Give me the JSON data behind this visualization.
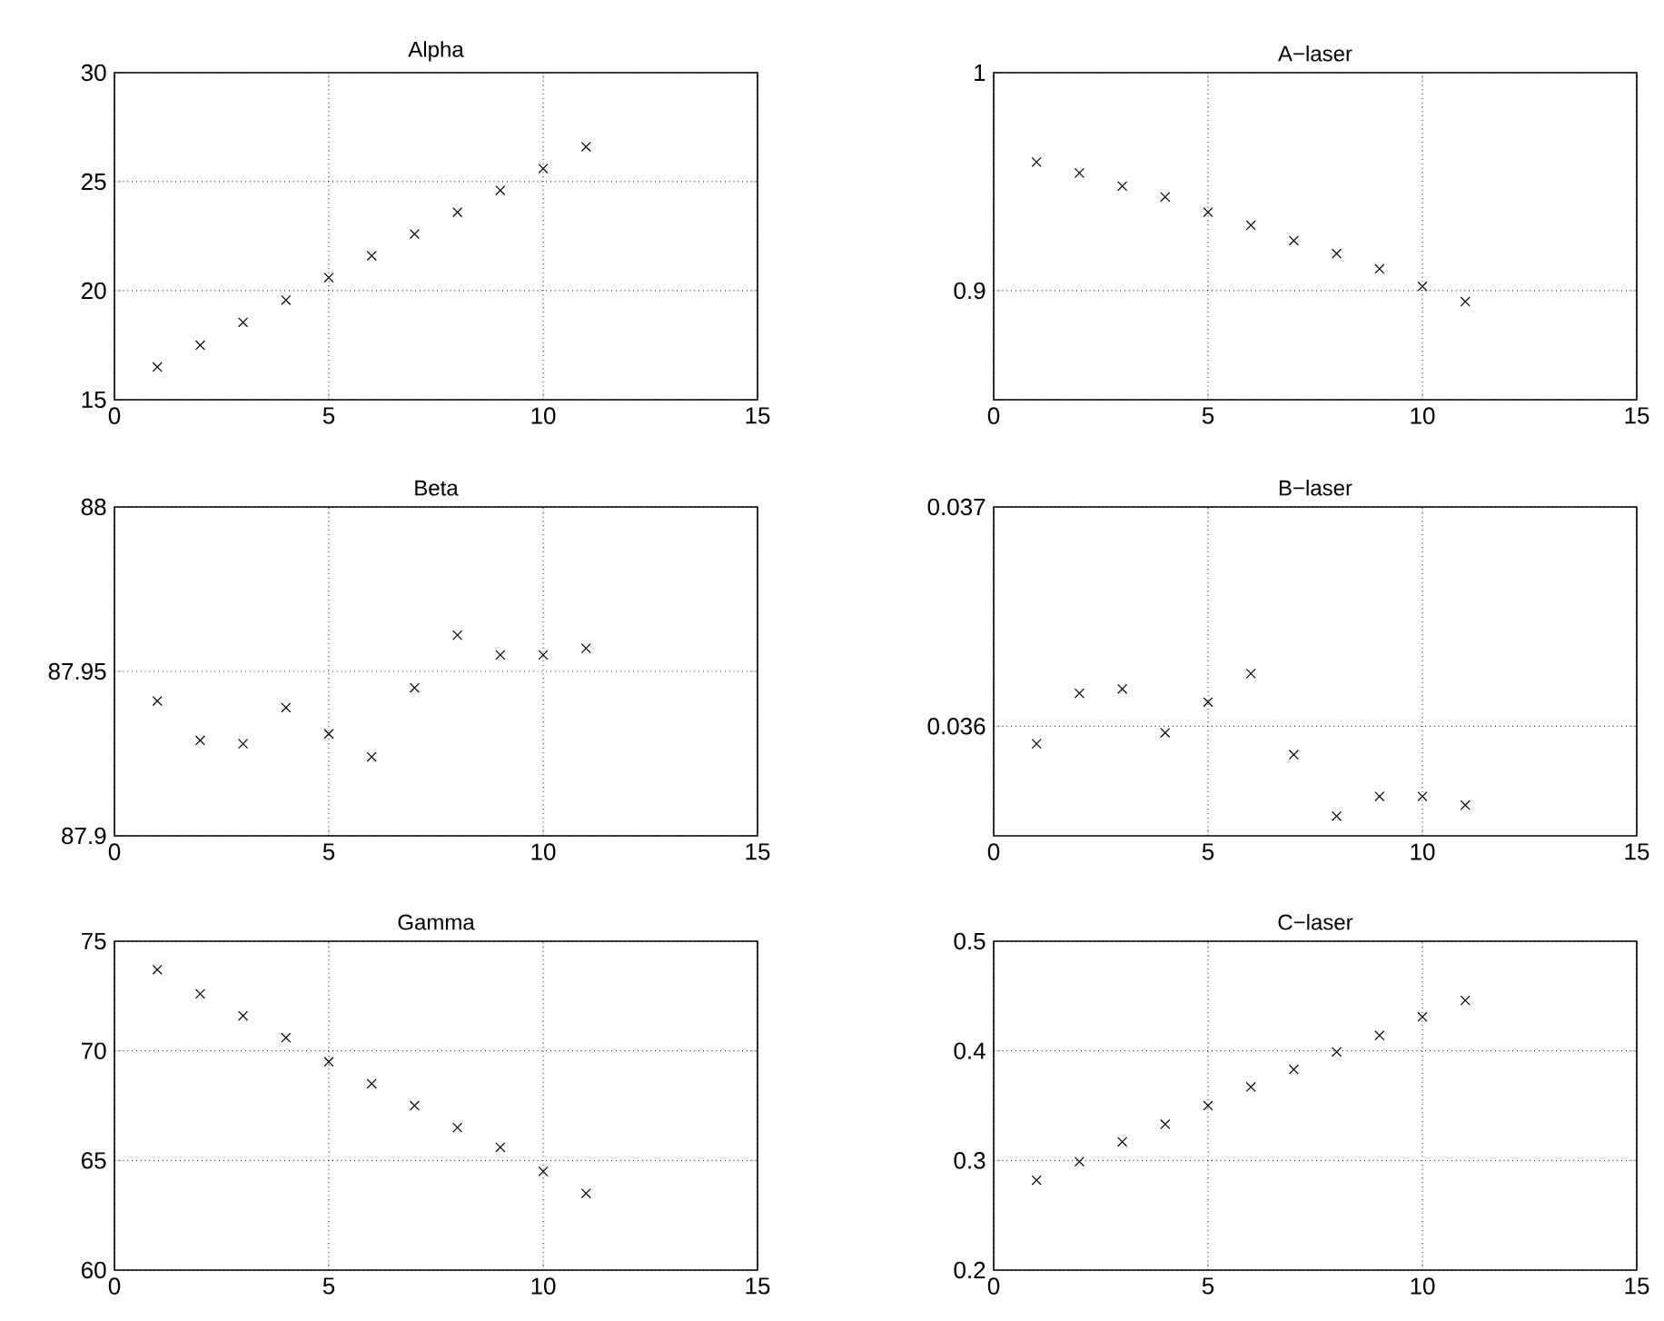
{
  "chart_data": [
    {
      "type": "scatter",
      "title": "Alpha",
      "x": [
        1,
        2,
        3,
        4,
        5,
        6,
        7,
        8,
        9,
        10,
        11
      ],
      "values": [
        16.5,
        17.5,
        18.55,
        19.57,
        20.6,
        21.6,
        22.6,
        23.6,
        24.6,
        25.6,
        26.6
      ],
      "color": "#000000",
      "marker": "cross",
      "grid": true,
      "xlim": [
        0,
        15
      ],
      "xticks": [
        0,
        5,
        10,
        15
      ],
      "ylim": [
        15,
        30
      ],
      "yticks": [
        15,
        20,
        25,
        30
      ]
    },
    {
      "type": "scatter",
      "title": "A−laser",
      "x": [
        1,
        2,
        3,
        4,
        5,
        6,
        7,
        8,
        9,
        10,
        11
      ],
      "values": [
        0.959,
        0.954,
        0.948,
        0.943,
        0.936,
        0.93,
        0.923,
        0.917,
        0.91,
        0.902,
        0.895
      ],
      "color": "#000000",
      "marker": "cross",
      "grid": true,
      "xlim": [
        0,
        15
      ],
      "xticks": [
        0,
        5,
        10,
        15
      ],
      "ylim": [
        0.85,
        1
      ],
      "yticks": [
        {
          "value": 0.85,
          "label": null
        },
        0.9,
        1
      ]
    },
    {
      "type": "scatter",
      "title": "Beta",
      "x": [
        1,
        2,
        3,
        4,
        5,
        6,
        7,
        8,
        9,
        10,
        11
      ],
      "values": [
        87.941,
        87.929,
        87.928,
        87.939,
        87.931,
        87.924,
        87.945,
        87.961,
        87.955,
        87.955,
        87.957
      ],
      "color": "#000000",
      "marker": "cross",
      "grid": true,
      "xlim": [
        0,
        15
      ],
      "xticks": [
        0,
        5,
        10,
        15
      ],
      "ylim": [
        87.9,
        88
      ],
      "yticks": [
        87.9,
        87.95,
        88
      ]
    },
    {
      "type": "scatter",
      "title": "B−laser",
      "x": [
        1,
        2,
        3,
        4,
        5,
        6,
        7,
        8,
        9,
        10,
        11
      ],
      "values": [
        0.03592,
        0.03615,
        0.03617,
        0.03597,
        0.03611,
        0.03624,
        0.03587,
        0.03559,
        0.03568,
        0.03568,
        0.03564
      ],
      "color": "#000000",
      "marker": "cross",
      "grid": true,
      "xlim": [
        0,
        15
      ],
      "xticks": [
        0,
        5,
        10,
        15
      ],
      "ylim": [
        0.0355,
        0.037
      ],
      "yticks": [
        0.036,
        0.037
      ]
    },
    {
      "type": "scatter",
      "title": "Gamma",
      "x": [
        1,
        2,
        3,
        4,
        5,
        6,
        7,
        8,
        9,
        10,
        11
      ],
      "values": [
        73.7,
        72.6,
        71.6,
        70.6,
        69.5,
        68.5,
        67.5,
        66.5,
        65.6,
        64.5,
        63.5
      ],
      "color": "#000000",
      "marker": "cross",
      "grid": true,
      "xlim": [
        0,
        15
      ],
      "xticks": [
        0,
        5,
        10,
        15
      ],
      "ylim": [
        60,
        75
      ],
      "yticks": [
        60,
        65,
        70,
        75
      ]
    },
    {
      "type": "scatter",
      "title": "C−laser",
      "x": [
        1,
        2,
        3,
        4,
        5,
        6,
        7,
        8,
        9,
        10,
        11
      ],
      "values": [
        0.282,
        0.299,
        0.317,
        0.333,
        0.35,
        0.367,
        0.383,
        0.399,
        0.414,
        0.431,
        0.446
      ],
      "color": "#000000",
      "marker": "cross",
      "grid": true,
      "xlim": [
        0,
        15
      ],
      "xticks": [
        0,
        5,
        10,
        15
      ],
      "ylim": [
        0.2,
        0.5
      ],
      "yticks": [
        0.2,
        0.3,
        0.4,
        0.5
      ]
    }
  ]
}
